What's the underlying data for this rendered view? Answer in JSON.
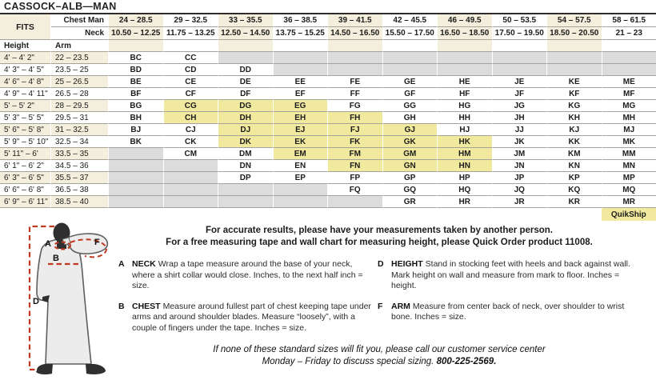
{
  "title": "CASSOCK–ALB—MAN",
  "table": {
    "fits_label": "FITS",
    "chest_label": "Chest Man",
    "neck_label": "Neck",
    "height_label": "Height",
    "arm_label": "Arm",
    "quikship_label": "QuikShip",
    "chest_ranges": [
      "24 – 28.5",
      "29 – 32.5",
      "33 – 35.5",
      "36 – 38.5",
      "39 – 41.5",
      "42 – 45.5",
      "46 – 49.5",
      "50 – 53.5",
      "54 – 57.5",
      "58 – 61.5"
    ],
    "neck_ranges": [
      "10.50 – 12.25",
      "11.75 – 13.25",
      "12.50 – 14.50",
      "13.75 – 15.25",
      "14.50 – 16.50",
      "15.50 – 17.50",
      "16.50 – 18.50",
      "17.50 – 19.50",
      "18.50 – 20.50",
      "21 – 23"
    ],
    "quikship_codes": [
      "CG",
      "DG",
      "EG",
      "CH",
      "DH",
      "EH",
      "FH",
      "DJ",
      "EJ",
      "FJ",
      "GJ",
      "DK",
      "EK",
      "FK",
      "GK",
      "HK",
      "EM",
      "FM",
      "GM",
      "HM",
      "FN",
      "GN",
      "HN"
    ],
    "rows": [
      {
        "height": "4' – 4' 2\"",
        "arm": "22 – 23.5",
        "codes": [
          "BC",
          "CC",
          "",
          "",
          "",
          "",
          "",
          "",
          "",
          ""
        ]
      },
      {
        "height": "4' 3\" – 4' 5\"",
        "arm": "23.5 – 25",
        "codes": [
          "BD",
          "CD",
          "DD",
          "",
          "",
          "",
          "",
          "",
          "",
          ""
        ]
      },
      {
        "height": "4' 6\" – 4' 8\"",
        "arm": "25 – 26.5",
        "codes": [
          "BE",
          "CE",
          "DE",
          "EE",
          "FE",
          "GE",
          "HE",
          "JE",
          "KE",
          "ME"
        ]
      },
      {
        "height": "4' 9\" – 4' 11\"",
        "arm": "26.5 – 28",
        "codes": [
          "BF",
          "CF",
          "DF",
          "EF",
          "FF",
          "GF",
          "HF",
          "JF",
          "KF",
          "MF"
        ]
      },
      {
        "height": "5' – 5' 2\"",
        "arm": "28 – 29.5",
        "codes": [
          "BG",
          "CG",
          "DG",
          "EG",
          "FG",
          "GG",
          "HG",
          "JG",
          "KG",
          "MG"
        ]
      },
      {
        "height": "5' 3\" – 5' 5\"",
        "arm": "29.5 – 31",
        "codes": [
          "BH",
          "CH",
          "DH",
          "EH",
          "FH",
          "GH",
          "HH",
          "JH",
          "KH",
          "MH"
        ]
      },
      {
        "height": "5' 6\" – 5' 8\"",
        "arm": "31 – 32.5",
        "codes": [
          "BJ",
          "CJ",
          "DJ",
          "EJ",
          "FJ",
          "GJ",
          "HJ",
          "JJ",
          "KJ",
          "MJ"
        ]
      },
      {
        "height": "5' 9\" – 5' 10\"",
        "arm": "32.5 – 34",
        "codes": [
          "BK",
          "CK",
          "DK",
          "EK",
          "FK",
          "GK",
          "HK",
          "JK",
          "KK",
          "MK"
        ]
      },
      {
        "height": "5' 11\" – 6'",
        "arm": "33.5 – 35",
        "codes": [
          "",
          "CM",
          "DM",
          "EM",
          "FM",
          "GM",
          "HM",
          "JM",
          "KM",
          "MM"
        ]
      },
      {
        "height": "6' 1\" – 6' 2\"",
        "arm": "34.5 – 36",
        "codes": [
          "",
          "",
          "DN",
          "EN",
          "FN",
          "GN",
          "HN",
          "JN",
          "KN",
          "MN"
        ]
      },
      {
        "height": "6' 3\" – 6' 5\"",
        "arm": "35.5 – 37",
        "codes": [
          "",
          "",
          "DP",
          "EP",
          "FP",
          "GP",
          "HP",
          "JP",
          "KP",
          "MP"
        ]
      },
      {
        "height": "6' 6\" – 6' 8\"",
        "arm": "36.5 – 38",
        "codes": [
          "",
          "",
          "",
          "",
          "FQ",
          "GQ",
          "HQ",
          "JQ",
          "KQ",
          "MQ"
        ]
      },
      {
        "height": "6' 9\" – 6' 11\"",
        "arm": "38.5 – 40",
        "codes": [
          "",
          "",
          "",
          "",
          "",
          "GR",
          "HR",
          "JR",
          "KR",
          "MR"
        ]
      }
    ]
  },
  "measure": {
    "line1": "For accurate results, please have your measurements taken by another person.",
    "line2": "For a free measuring tape and wall chart for measuring height, please Quick Order product 11008."
  },
  "instructions": [
    {
      "key": "A",
      "term": "NECK",
      "text": "Wrap a tape measure around the base of your neck, where a shirt collar would close. Inches, to the next half inch = size."
    },
    {
      "key": "B",
      "term": "CHEST",
      "text": "Measure around fullest part of chest keeping tape under arms and around shoulder blades. Measure “loosely”, with a couple of fingers under the tape. Inches = size."
    },
    {
      "key": "D",
      "term": "HEIGHT",
      "text": "Stand in stocking feet with heels and back against wall. Mark height on wall and measure from mark to floor. Inches = height."
    },
    {
      "key": "F",
      "term": "ARM",
      "text": "Measure from center back of neck, over shoulder to wrist bone. Inches = size."
    }
  ],
  "footer": {
    "line1": "If none of these standard sizes will fit you, please call our customer service center",
    "line2": "Monday – Friday to discuss special sizing.",
    "phone": "800-225-2569."
  },
  "figure": {
    "labels": {
      "a": "A",
      "b": "B",
      "d": "D",
      "f": "F"
    }
  },
  "colors": {
    "cream": "#f4efdd",
    "quikship_yellow": "#f1ea9e",
    "unavailable_gray": "#dcdcdc",
    "measure_red": "#c0381f"
  }
}
